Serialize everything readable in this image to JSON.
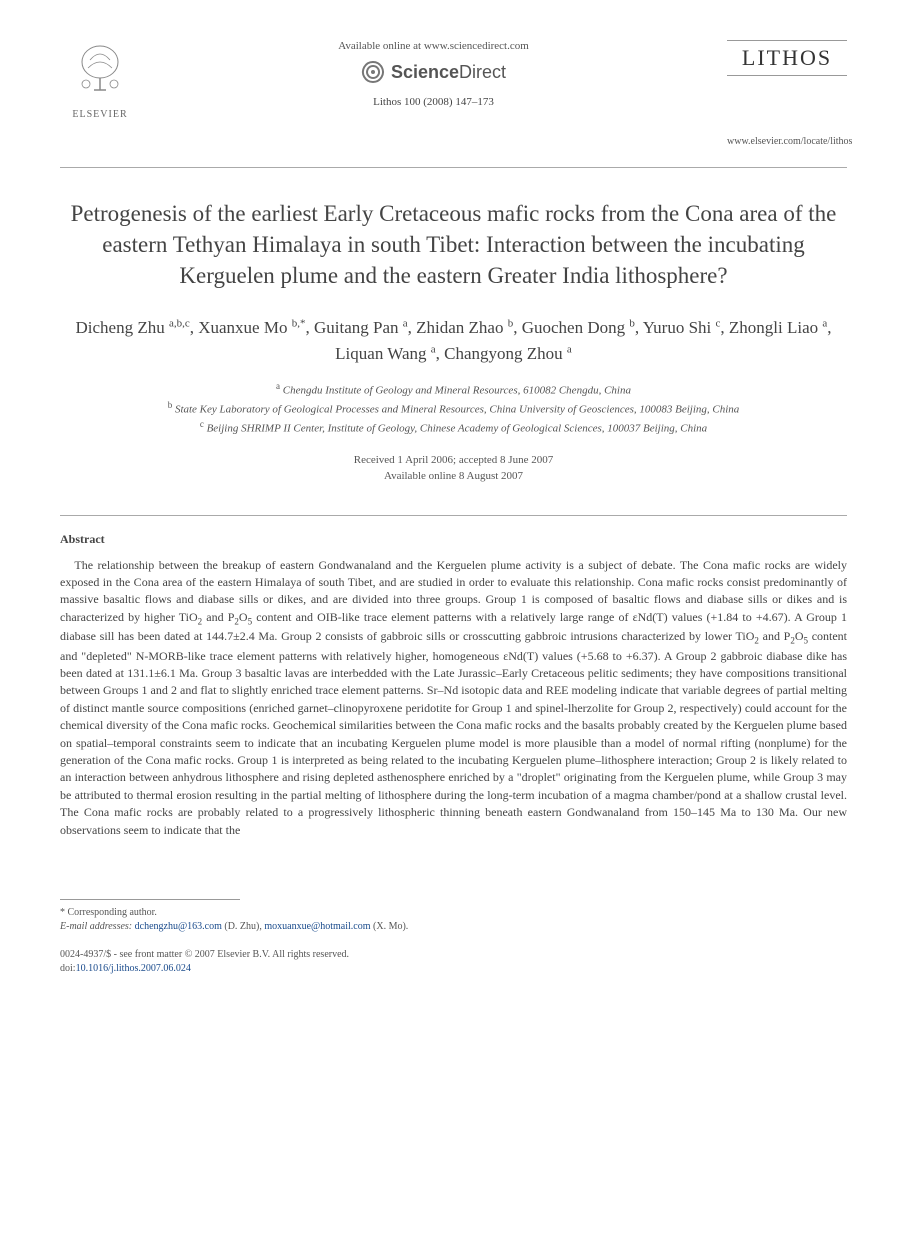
{
  "header": {
    "elsevier_label": "ELSEVIER",
    "available_text": "Available online at www.sciencedirect.com",
    "sciencedirect_prefix": "Science",
    "sciencedirect_suffix": "Direct",
    "citation": "Lithos 100 (2008) 147–173",
    "journal_name": "LITHOS",
    "journal_url": "www.elsevier.com/locate/lithos"
  },
  "title": "Petrogenesis of the earliest Early Cretaceous mafic rocks from the Cona area of the eastern Tethyan Himalaya in south Tibet: Interaction between the incubating Kerguelen plume and the eastern Greater India lithosphere?",
  "authors_html": "Dicheng Zhu <sup>a,b,c</sup>, Xuanxue Mo <sup>b,*</sup>, Guitang Pan <sup>a</sup>, Zhidan Zhao <sup>b</sup>, Guochen Dong <sup>b</sup>, Yuruo Shi <sup>c</sup>, Zhongli Liao <sup>a</sup>, Liquan Wang <sup>a</sup>, Changyong Zhou <sup>a</sup>",
  "affiliations": [
    {
      "sup": "a",
      "text": "Chengdu Institute of Geology and Mineral Resources, 610082 Chengdu, China"
    },
    {
      "sup": "b",
      "text": "State Key Laboratory of Geological Processes and Mineral Resources, China University of Geosciences, 100083 Beijing, China"
    },
    {
      "sup": "c",
      "text": "Beijing SHRIMP II Center, Institute of Geology, Chinese Academy of Geological Sciences, 100037 Beijing, China"
    }
  ],
  "dates": {
    "received_accepted": "Received 1 April 2006; accepted 8 June 2007",
    "online": "Available online 8 August 2007"
  },
  "abstract": {
    "heading": "Abstract",
    "body_html": "The relationship between the breakup of eastern Gondwanaland and the Kerguelen plume activity is a subject of debate. The Cona mafic rocks are widely exposed in the Cona area of the eastern Himalaya of south Tibet, and are studied in order to evaluate this relationship. Cona mafic rocks consist predominantly of massive basaltic flows and diabase sills or dikes, and are divided into three groups. Group 1 is composed of basaltic flows and diabase sills or dikes and is characterized by higher TiO<sub>2</sub> and P<sub>2</sub>O<sub>5</sub> content and OIB-like trace element patterns with a relatively large range of εNd(T) values (+1.84 to +4.67). A Group 1 diabase sill has been dated at 144.7±2.4 Ma. Group 2 consists of gabbroic sills or crosscutting gabbroic intrusions characterized by lower TiO<sub>2</sub> and P<sub>2</sub>O<sub>5</sub> content and \"depleted\" N-MORB-like trace element patterns with relatively higher, homogeneous εNd(T) values (+5.68 to +6.37). A Group 2 gabbroic diabase dike has been dated at 131.1±6.1 Ma. Group 3 basaltic lavas are interbedded with the Late Jurassic–Early Cretaceous pelitic sediments; they have compositions transitional between Groups 1 and 2 and flat to slightly enriched trace element patterns. Sr–Nd isotopic data and REE modeling indicate that variable degrees of partial melting of distinct mantle source compositions (enriched garnet–clinopyroxene peridotite for Group 1 and spinel-lherzolite for Group 2, respectively) could account for the chemical diversity of the Cona mafic rocks. Geochemical similarities between the Cona mafic rocks and the basalts probably created by the Kerguelen plume based on spatial–temporal constraints seem to indicate that an incubating Kerguelen plume model is more plausible than a model of normal rifting (nonplume) for the generation of the Cona mafic rocks. Group 1 is interpreted as being related to the incubating Kerguelen plume–lithosphere interaction; Group 2 is likely related to an interaction between anhydrous lithosphere and rising depleted asthenosphere enriched by a \"droplet\" originating from the Kerguelen plume, while Group 3 may be attributed to thermal erosion resulting in the partial melting of lithosphere during the long-term incubation of a magma chamber/pond at a shallow crustal level. The Cona mafic rocks are probably related to a progressively lithospheric thinning beneath eastern Gondwanaland from 150–145 Ma to 130 Ma. Our new observations seem to indicate that the"
  },
  "footnote": {
    "corresponding": "* Corresponding author.",
    "emails_label": "E-mail addresses:",
    "email1": "dchengzhu@163.com",
    "email1_who": "(D. Zhu),",
    "email2": "moxuanxue@hotmail.com",
    "email2_who": "(X. Mo)."
  },
  "bottom": {
    "issn_line": "0024-4937/$ - see front matter © 2007 Elsevier B.V. All rights reserved.",
    "doi_label": "doi:",
    "doi": "10.1016/j.lithos.2007.06.024"
  },
  "colors": {
    "text": "#444444",
    "link": "#1a4b8c",
    "rule": "#aaaaaa"
  }
}
